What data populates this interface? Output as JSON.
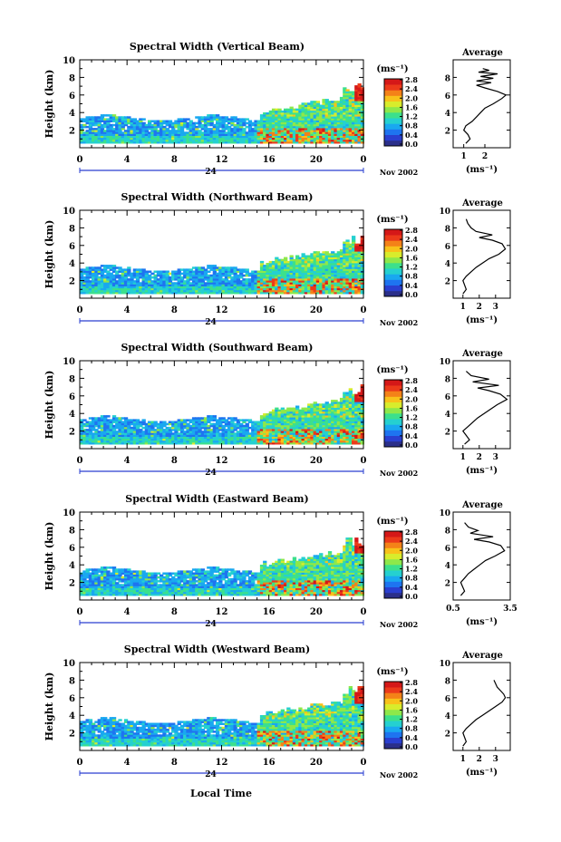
{
  "figure": {
    "xlabel": "Local Time",
    "date_label": "Nov 2002",
    "unit_label": "(ms⁻¹)",
    "avg_title": "Average",
    "ylabel": "Height (km)",
    "colors": {
      "colormap": [
        "#2b2f8a",
        "#2a3fd0",
        "#1e74f0",
        "#19a8f0",
        "#25d0d0",
        "#3ce08c",
        "#8ee84a",
        "#d8ec2c",
        "#f8c21a",
        "#f48218",
        "#ec3a1a",
        "#d51818"
      ]
    }
  },
  "chart_data": [
    {
      "type": "heatmap",
      "title": "Spectral Width (Vertical Beam)",
      "ylabel": "Height (km)",
      "ylim": [
        0,
        10
      ],
      "yticks": [
        2,
        4,
        6,
        8,
        10
      ],
      "xlim": [
        0,
        24
      ],
      "xticks": [
        "0",
        "4",
        "8",
        "12",
        "16",
        "20",
        "0"
      ],
      "date_mark": "24",
      "colorbar": {
        "ticks": [
          "0.0",
          "0.4",
          "0.8",
          "1.2",
          "1.6",
          "2.0",
          "2.4",
          "2.8"
        ],
        "range": [
          0,
          2.8
        ]
      },
      "average": {
        "type": "line",
        "title": "Average",
        "xlabel": "(ms⁻¹)",
        "xlim": [
          0.5,
          3.2
        ],
        "xticks": [
          "1",
          "2"
        ],
        "xtick_values": [
          1,
          2
        ],
        "yticks": [
          2,
          4,
          6,
          8
        ],
        "x": [
          1.1,
          1.3,
          1.2,
          1.0,
          1.1,
          1.4,
          1.6,
          1.8,
          2.0,
          2.4,
          2.8,
          3.0,
          2.6,
          2.0,
          1.6,
          2.3,
          1.6,
          2.4,
          1.8,
          2.6,
          1.7,
          2.2,
          1.9
        ],
        "y": [
          0.5,
          1.0,
          1.5,
          2.0,
          2.5,
          3.0,
          3.5,
          4.0,
          4.5,
          5.0,
          5.6,
          6.0,
          6.4,
          6.8,
          7.1,
          7.4,
          7.6,
          7.9,
          8.1,
          8.4,
          8.6,
          8.8,
          9.0
        ]
      }
    },
    {
      "type": "heatmap",
      "title": "Spectral Width (Northward Beam)",
      "ylabel": "Height (km)",
      "ylim": [
        0,
        10
      ],
      "yticks": [
        2,
        4,
        6,
        8,
        10
      ],
      "xlim": [
        0,
        24
      ],
      "xticks": [
        "0",
        "4",
        "8",
        "12",
        "16",
        "20",
        "0"
      ],
      "date_mark": "24",
      "colorbar": {
        "ticks": [
          "0.0",
          "0.4",
          "0.8",
          "1.2",
          "1.6",
          "2.0",
          "2.4",
          "2.8"
        ],
        "range": [
          0,
          2.8
        ]
      },
      "average": {
        "type": "line",
        "title": "Average",
        "xlabel": "(ms⁻¹)",
        "xlim": [
          0.4,
          3.9
        ],
        "xticks": [
          "1",
          "2",
          "3"
        ],
        "xtick_values": [
          1,
          2,
          3
        ],
        "yticks": [
          2,
          4,
          6,
          8,
          10
        ],
        "x": [
          1.0,
          1.2,
          1.1,
          1.0,
          1.2,
          1.5,
          1.8,
          2.2,
          2.6,
          3.2,
          3.6,
          3.4,
          2.8,
          2.0,
          2.8,
          1.8,
          1.5,
          1.3,
          1.2
        ],
        "y": [
          0.5,
          1.0,
          1.5,
          2.0,
          2.5,
          3.0,
          3.5,
          4.0,
          4.5,
          5.0,
          5.6,
          6.2,
          6.6,
          6.9,
          7.2,
          7.6,
          8.0,
          8.5,
          9.0
        ]
      }
    },
    {
      "type": "heatmap",
      "title": "Spectral Width (Southward Beam)",
      "ylabel": "Height (km)",
      "ylim": [
        0,
        10
      ],
      "yticks": [
        2,
        4,
        6,
        8,
        10
      ],
      "xlim": [
        0,
        24
      ],
      "xticks": [
        "0",
        "4",
        "8",
        "12",
        "16",
        "20",
        "0"
      ],
      "date_mark": "24",
      "colorbar": {
        "ticks": [
          "0.0",
          "0.4",
          "0.8",
          "1.2",
          "1.6",
          "2.0",
          "2.4",
          "2.8"
        ],
        "range": [
          0,
          2.8
        ]
      },
      "average": {
        "type": "line",
        "title": "Average",
        "xlabel": "(ms⁻¹)",
        "xlim": [
          0.4,
          3.9
        ],
        "xticks": [
          "1",
          "2",
          "3"
        ],
        "xtick_values": [
          1,
          2,
          3
        ],
        "yticks": [
          2,
          4,
          6,
          8,
          10
        ],
        "x": [
          1.1,
          1.4,
          1.2,
          1.0,
          1.3,
          1.6,
          1.9,
          2.3,
          2.7,
          3.1,
          3.7,
          3.3,
          2.6,
          1.9,
          3.2,
          1.6,
          2.6,
          1.5,
          1.2
        ],
        "y": [
          0.5,
          1.0,
          1.5,
          2.0,
          2.5,
          3.0,
          3.5,
          4.0,
          4.5,
          5.0,
          5.6,
          6.2,
          6.6,
          6.9,
          7.2,
          7.6,
          7.9,
          8.3,
          8.8
        ]
      }
    },
    {
      "type": "heatmap",
      "title": "Spectral Width (Eastward Beam)",
      "ylabel": "Height (km)",
      "ylim": [
        0,
        10
      ],
      "yticks": [
        2,
        4,
        6,
        8,
        10
      ],
      "xlim": [
        0,
        24
      ],
      "xticks": [
        "0",
        "4",
        "8",
        "12",
        "16",
        "20",
        "0"
      ],
      "date_mark": "24",
      "colorbar": {
        "ticks": [
          "0.0",
          "0.4",
          "0.8",
          "1.2",
          "1.6",
          "2.0",
          "2.4",
          "2.8"
        ],
        "range": [
          0,
          2.8
        ]
      },
      "average": {
        "type": "line",
        "title": "Average",
        "xlabel": "(ms⁻¹)",
        "xlim": [
          0.5,
          3.5
        ],
        "xticks": [
          "0.5",
          "3.5"
        ],
        "xtick_values": [
          0.5,
          3.5
        ],
        "yticks": [
          2,
          4,
          6,
          8,
          10
        ],
        "x": [
          0.9,
          1.1,
          1.0,
          0.9,
          1.1,
          1.3,
          1.6,
          1.9,
          2.2,
          2.7,
          3.2,
          3.0,
          2.4,
          1.6,
          2.6,
          1.4,
          1.8,
          1.3,
          1.1
        ],
        "y": [
          0.5,
          1.0,
          1.5,
          2.0,
          2.5,
          3.0,
          3.5,
          4.0,
          4.5,
          5.0,
          5.6,
          6.2,
          6.6,
          6.9,
          7.2,
          7.6,
          7.9,
          8.3,
          8.8
        ]
      }
    },
    {
      "type": "heatmap",
      "title": "Spectral Width (Westward Beam)",
      "ylabel": "Height (km)",
      "ylim": [
        0,
        10
      ],
      "yticks": [
        2,
        4,
        6,
        8,
        10
      ],
      "xlim": [
        0,
        24
      ],
      "xticks": [
        "0",
        "4",
        "8",
        "12",
        "16",
        "20",
        "0"
      ],
      "date_mark": "24",
      "colorbar": {
        "ticks": [
          "0.0",
          "0.4",
          "0.8",
          "1.2",
          "1.6",
          "2.0",
          "2.4",
          "2.8"
        ],
        "range": [
          0,
          2.8
        ]
      },
      "average": {
        "type": "line",
        "title": "Average",
        "xlabel": "(ms⁻¹)",
        "xlim": [
          0.4,
          3.9
        ],
        "xticks": [
          "1",
          "2",
          "3"
        ],
        "xtick_values": [
          1,
          2,
          3
        ],
        "yticks": [
          2,
          4,
          6,
          8,
          10
        ],
        "x": [
          1.0,
          1.2,
          1.1,
          1.0,
          1.2,
          1.5,
          1.8,
          2.2,
          2.6,
          3.0,
          3.4,
          3.6,
          3.5,
          3.3,
          3.1,
          3.0,
          2.9
        ],
        "y": [
          0.5,
          1.0,
          1.5,
          2.0,
          2.5,
          3.0,
          3.5,
          4.0,
          4.5,
          5.0,
          5.5,
          6.0,
          6.4,
          6.8,
          7.2,
          7.6,
          8.0
        ]
      }
    }
  ]
}
